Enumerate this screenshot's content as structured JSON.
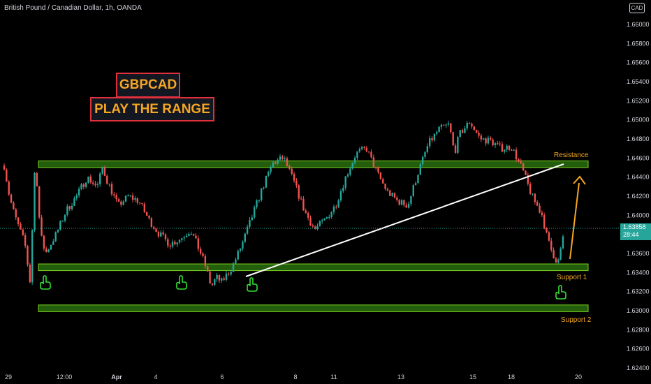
{
  "header": {
    "symbol_line": "British Pound / Canadian Dollar, 1h, OANDA",
    "currency_button": "CAD"
  },
  "title": {
    "line1": "GBPCAD",
    "line2": "PLAY THE RANGE"
  },
  "price_tag": {
    "value": "1.63858",
    "countdown": "28:44"
  },
  "labels": {
    "resistance": "Resistance",
    "support1": "Support 1",
    "support2": "Support 2"
  },
  "colors": {
    "bull": "#26a69a",
    "bear": "#ef5350",
    "zone_fill": "#2e7d10",
    "zone_border": "#7ed321",
    "label": "#f5a623",
    "title_border": "#e0303c",
    "trendline": "#ffffff",
    "hand": "#32e032"
  },
  "icons": [
    "pointing-hand-icon",
    "pointing-hand-icon",
    "pointing-hand-icon",
    "pointing-hand-icon"
  ],
  "chart_data": {
    "type": "candlestick",
    "y_axis": {
      "ticks": [
        "1.66000",
        "1.65800",
        "1.65600",
        "1.65400",
        "1.65200",
        "1.65000",
        "1.64800",
        "1.64600",
        "1.64400",
        "1.64200",
        "1.64000",
        "1.63600",
        "1.63400",
        "1.63200",
        "1.63000",
        "1.62800",
        "1.62600",
        "1.62400"
      ],
      "range": [
        1.6238,
        1.6622
      ]
    },
    "x_axis": {
      "ticks": [
        "29",
        "12:00",
        "Apr",
        "4",
        "6",
        "8",
        "11",
        "13",
        "15",
        "18",
        "20"
      ]
    },
    "zones": [
      {
        "name": "Resistance",
        "low": 1.645,
        "high": 1.6457
      },
      {
        "name": "Support 1",
        "low": 1.6342,
        "high": 1.6349
      },
      {
        "name": "Support 2",
        "low": 1.6299,
        "high": 1.6306
      }
    ],
    "trendline": {
      "from": {
        "x": "6",
        "y": 1.6334
      },
      "to": {
        "x": "18",
        "y": 1.6455
      }
    },
    "arrow": {
      "from": {
        "x": "18",
        "y": 1.6352
      },
      "to": {
        "x": "18",
        "y": 1.6439
      }
    },
    "path_points": [
      [
        0,
        1.6452
      ],
      [
        0.5,
        1.642
      ],
      [
        1.0,
        1.64
      ],
      [
        1.5,
        1.6385
      ],
      [
        2.0,
        1.637
      ],
      [
        2.5,
        1.633
      ],
      [
        3.0,
        1.646
      ],
      [
        3.5,
        1.638
      ],
      [
        4.0,
        1.636
      ],
      [
        5.0,
        1.638
      ],
      [
        6.0,
        1.6405
      ],
      [
        7.0,
        1.642
      ],
      [
        8.0,
        1.644
      ],
      [
        9.0,
        1.643
      ],
      [
        9.5,
        1.645
      ],
      [
        10.0,
        1.6435
      ],
      [
        11.0,
        1.641
      ],
      [
        12.0,
        1.642
      ],
      [
        13.0,
        1.6415
      ],
      [
        14.0,
        1.6395
      ],
      [
        15.0,
        1.638
      ],
      [
        16.0,
        1.637
      ],
      [
        17.0,
        1.6375
      ],
      [
        18.0,
        1.6385
      ],
      [
        19.0,
        1.636
      ],
      [
        19.5,
        1.6345
      ],
      [
        20.0,
        1.6325
      ],
      [
        20.5,
        1.6335
      ],
      [
        21.0,
        1.633
      ],
      [
        22.0,
        1.6345
      ],
      [
        23.0,
        1.637
      ],
      [
        24.0,
        1.64
      ],
      [
        25.0,
        1.643
      ],
      [
        26.0,
        1.6455
      ],
      [
        27.0,
        1.646
      ],
      [
        28.0,
        1.6435
      ],
      [
        29.0,
        1.6405
      ],
      [
        30.0,
        1.6385
      ],
      [
        31.0,
        1.6395
      ],
      [
        32.0,
        1.641
      ],
      [
        33.0,
        1.644
      ],
      [
        34.0,
        1.6465
      ],
      [
        35.0,
        1.647
      ],
      [
        36.0,
        1.6445
      ],
      [
        37.0,
        1.6425
      ],
      [
        38.0,
        1.6415
      ],
      [
        39.0,
        1.641
      ],
      [
        40.0,
        1.6445
      ],
      [
        41.0,
        1.6475
      ],
      [
        42.0,
        1.649
      ],
      [
        43.0,
        1.6495
      ],
      [
        43.5,
        1.6465
      ],
      [
        44.0,
        1.6485
      ],
      [
        45.0,
        1.6498
      ],
      [
        46.0,
        1.648
      ],
      [
        47.0,
        1.6478
      ],
      [
        48.0,
        1.647
      ],
      [
        49.0,
        1.6472
      ],
      [
        50.0,
        1.645
      ],
      [
        51.0,
        1.642
      ],
      [
        52.0,
        1.64
      ],
      [
        52.5,
        1.6375
      ],
      [
        53.0,
        1.636
      ],
      [
        53.5,
        1.635
      ],
      [
        54.0,
        1.6375
      ]
    ]
  }
}
